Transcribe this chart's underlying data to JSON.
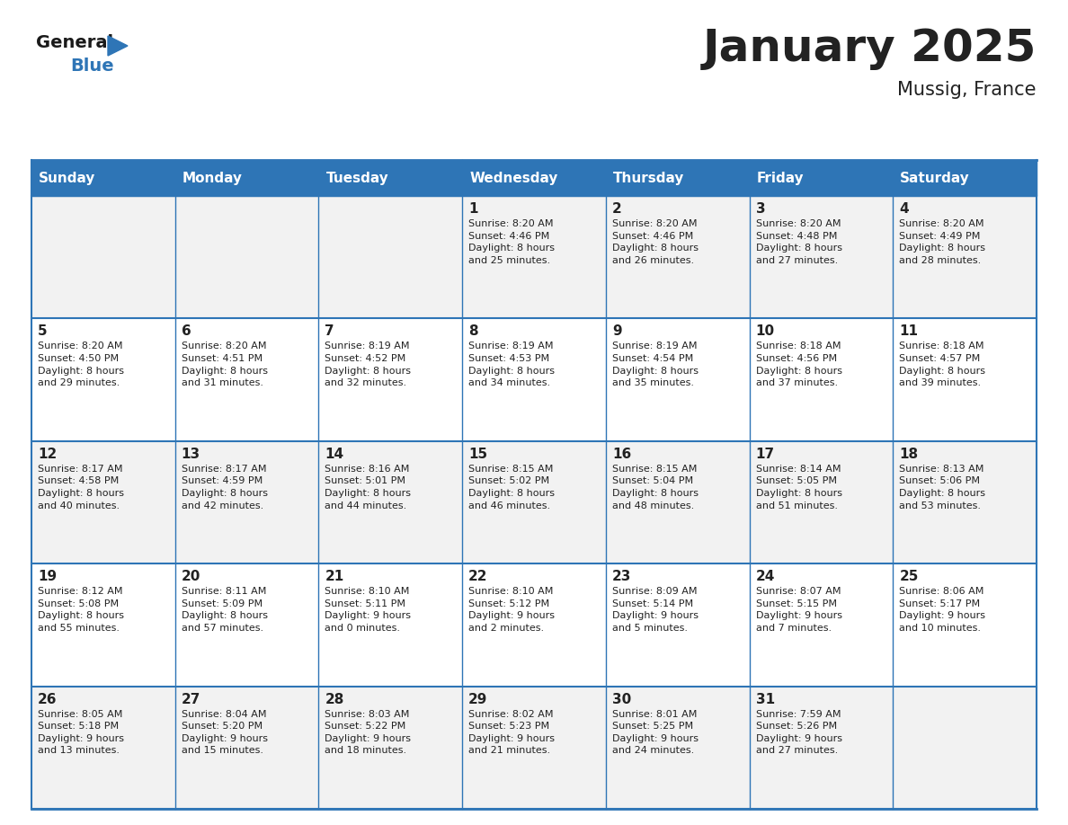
{
  "title": "January 2025",
  "subtitle": "Mussig, France",
  "header_color": "#2E75B6",
  "header_text_color": "#FFFFFF",
  "cell_bg_even": "#F2F2F2",
  "cell_bg_odd": "#FFFFFF",
  "border_color": "#2E75B6",
  "text_color": "#222222",
  "days_of_week": [
    "Sunday",
    "Monday",
    "Tuesday",
    "Wednesday",
    "Thursday",
    "Friday",
    "Saturday"
  ],
  "calendar_data": [
    [
      {
        "day": null,
        "info": null
      },
      {
        "day": null,
        "info": null
      },
      {
        "day": null,
        "info": null
      },
      {
        "day": 1,
        "info": "Sunrise: 8:20 AM\nSunset: 4:46 PM\nDaylight: 8 hours\nand 25 minutes."
      },
      {
        "day": 2,
        "info": "Sunrise: 8:20 AM\nSunset: 4:46 PM\nDaylight: 8 hours\nand 26 minutes."
      },
      {
        "day": 3,
        "info": "Sunrise: 8:20 AM\nSunset: 4:48 PM\nDaylight: 8 hours\nand 27 minutes."
      },
      {
        "day": 4,
        "info": "Sunrise: 8:20 AM\nSunset: 4:49 PM\nDaylight: 8 hours\nand 28 minutes."
      }
    ],
    [
      {
        "day": 5,
        "info": "Sunrise: 8:20 AM\nSunset: 4:50 PM\nDaylight: 8 hours\nand 29 minutes."
      },
      {
        "day": 6,
        "info": "Sunrise: 8:20 AM\nSunset: 4:51 PM\nDaylight: 8 hours\nand 31 minutes."
      },
      {
        "day": 7,
        "info": "Sunrise: 8:19 AM\nSunset: 4:52 PM\nDaylight: 8 hours\nand 32 minutes."
      },
      {
        "day": 8,
        "info": "Sunrise: 8:19 AM\nSunset: 4:53 PM\nDaylight: 8 hours\nand 34 minutes."
      },
      {
        "day": 9,
        "info": "Sunrise: 8:19 AM\nSunset: 4:54 PM\nDaylight: 8 hours\nand 35 minutes."
      },
      {
        "day": 10,
        "info": "Sunrise: 8:18 AM\nSunset: 4:56 PM\nDaylight: 8 hours\nand 37 minutes."
      },
      {
        "day": 11,
        "info": "Sunrise: 8:18 AM\nSunset: 4:57 PM\nDaylight: 8 hours\nand 39 minutes."
      }
    ],
    [
      {
        "day": 12,
        "info": "Sunrise: 8:17 AM\nSunset: 4:58 PM\nDaylight: 8 hours\nand 40 minutes."
      },
      {
        "day": 13,
        "info": "Sunrise: 8:17 AM\nSunset: 4:59 PM\nDaylight: 8 hours\nand 42 minutes."
      },
      {
        "day": 14,
        "info": "Sunrise: 8:16 AM\nSunset: 5:01 PM\nDaylight: 8 hours\nand 44 minutes."
      },
      {
        "day": 15,
        "info": "Sunrise: 8:15 AM\nSunset: 5:02 PM\nDaylight: 8 hours\nand 46 minutes."
      },
      {
        "day": 16,
        "info": "Sunrise: 8:15 AM\nSunset: 5:04 PM\nDaylight: 8 hours\nand 48 minutes."
      },
      {
        "day": 17,
        "info": "Sunrise: 8:14 AM\nSunset: 5:05 PM\nDaylight: 8 hours\nand 51 minutes."
      },
      {
        "day": 18,
        "info": "Sunrise: 8:13 AM\nSunset: 5:06 PM\nDaylight: 8 hours\nand 53 minutes."
      }
    ],
    [
      {
        "day": 19,
        "info": "Sunrise: 8:12 AM\nSunset: 5:08 PM\nDaylight: 8 hours\nand 55 minutes."
      },
      {
        "day": 20,
        "info": "Sunrise: 8:11 AM\nSunset: 5:09 PM\nDaylight: 8 hours\nand 57 minutes."
      },
      {
        "day": 21,
        "info": "Sunrise: 8:10 AM\nSunset: 5:11 PM\nDaylight: 9 hours\nand 0 minutes."
      },
      {
        "day": 22,
        "info": "Sunrise: 8:10 AM\nSunset: 5:12 PM\nDaylight: 9 hours\nand 2 minutes."
      },
      {
        "day": 23,
        "info": "Sunrise: 8:09 AM\nSunset: 5:14 PM\nDaylight: 9 hours\nand 5 minutes."
      },
      {
        "day": 24,
        "info": "Sunrise: 8:07 AM\nSunset: 5:15 PM\nDaylight: 9 hours\nand 7 minutes."
      },
      {
        "day": 25,
        "info": "Sunrise: 8:06 AM\nSunset: 5:17 PM\nDaylight: 9 hours\nand 10 minutes."
      }
    ],
    [
      {
        "day": 26,
        "info": "Sunrise: 8:05 AM\nSunset: 5:18 PM\nDaylight: 9 hours\nand 13 minutes."
      },
      {
        "day": 27,
        "info": "Sunrise: 8:04 AM\nSunset: 5:20 PM\nDaylight: 9 hours\nand 15 minutes."
      },
      {
        "day": 28,
        "info": "Sunrise: 8:03 AM\nSunset: 5:22 PM\nDaylight: 9 hours\nand 18 minutes."
      },
      {
        "day": 29,
        "info": "Sunrise: 8:02 AM\nSunset: 5:23 PM\nDaylight: 9 hours\nand 21 minutes."
      },
      {
        "day": 30,
        "info": "Sunrise: 8:01 AM\nSunset: 5:25 PM\nDaylight: 9 hours\nand 24 minutes."
      },
      {
        "day": 31,
        "info": "Sunrise: 7:59 AM\nSunset: 5:26 PM\nDaylight: 9 hours\nand 27 minutes."
      },
      {
        "day": null,
        "info": null
      }
    ]
  ],
  "logo_color_general": "#1a1a1a",
  "logo_color_blue": "#2E75B6",
  "logo_triangle_color": "#2E75B6",
  "title_fontsize": 36,
  "subtitle_fontsize": 15,
  "header_fontsize": 11,
  "day_num_fontsize": 11,
  "info_fontsize": 8
}
